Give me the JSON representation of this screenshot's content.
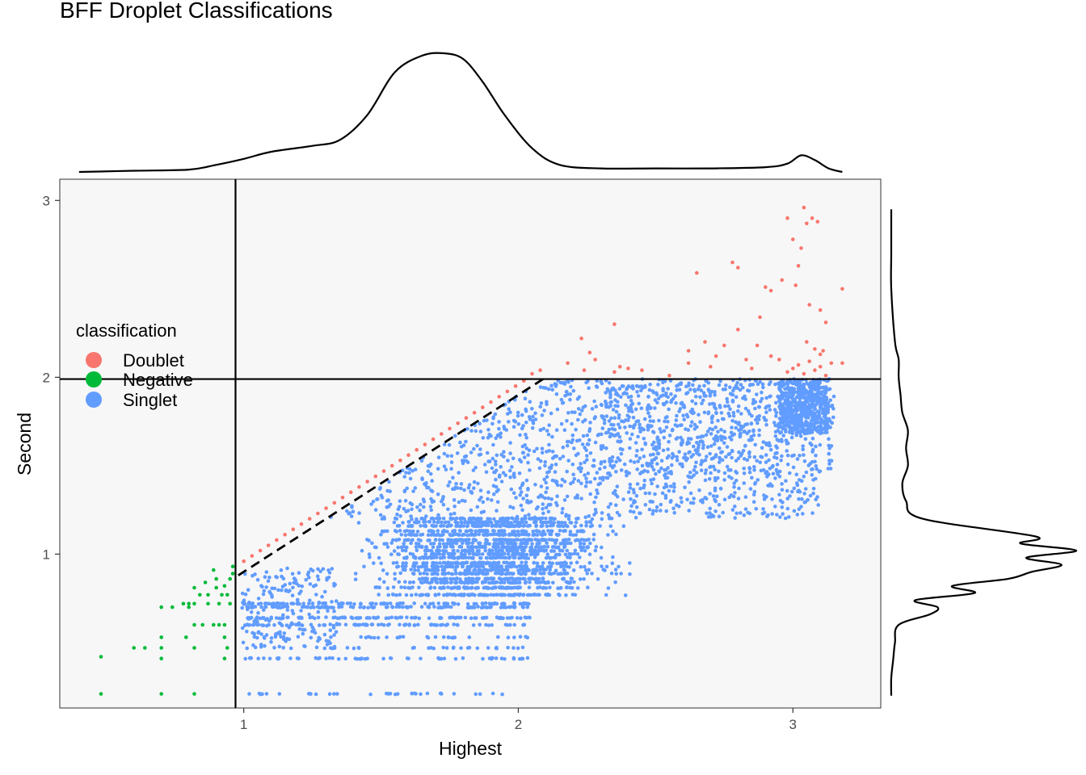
{
  "chart_data": {
    "type": "scatter",
    "title": "BFF Droplet Classifications",
    "xlabel": "Highest",
    "ylabel": "Second",
    "xlim": [
      0.33,
      3.32
    ],
    "ylim": [
      0.13,
      3.12
    ],
    "x_ticks": [
      1,
      2,
      3
    ],
    "y_ticks": [
      1,
      2,
      3
    ],
    "x_tick_labels": [
      "1",
      "2",
      "3"
    ],
    "y_tick_labels": [
      "1",
      "2",
      "3"
    ],
    "grid": false,
    "legend": {
      "title": "classification",
      "position": "left-inside",
      "entries": [
        {
          "label": "Doublet",
          "color": "#F8766D"
        },
        {
          "label": "Negative",
          "color": "#00BA38"
        },
        {
          "label": "Singlet",
          "color": "#619CFF"
        }
      ]
    },
    "reference_lines": {
      "vertical_x": 0.97,
      "horizontal_y": 1.99,
      "diagonal_dashed": {
        "from": [
          0.98,
          0.88
        ],
        "to": [
          2.1,
          2.0
        ]
      }
    },
    "marginal_density_x": {
      "x": [
        0.4,
        0.6,
        0.8,
        0.9,
        1.0,
        1.1,
        1.25,
        1.35,
        1.45,
        1.55,
        1.65,
        1.73,
        1.8,
        1.87,
        1.95,
        2.05,
        2.15,
        2.3,
        2.5,
        2.7,
        2.9,
        2.98,
        3.03,
        3.08,
        3.13,
        3.18
      ],
      "density": [
        0.0,
        0.01,
        0.02,
        0.06,
        0.11,
        0.17,
        0.22,
        0.27,
        0.48,
        0.84,
        0.98,
        1.0,
        0.95,
        0.76,
        0.48,
        0.2,
        0.06,
        0.03,
        0.03,
        0.03,
        0.04,
        0.07,
        0.14,
        0.1,
        0.03,
        0.0
      ]
    },
    "marginal_density_y": {
      "y": [
        0.2,
        0.3,
        0.4,
        0.5,
        0.6,
        0.66,
        0.7,
        0.74,
        0.78,
        0.82,
        0.86,
        0.9,
        0.94,
        0.98,
        1.02,
        1.06,
        1.1,
        1.2,
        1.3,
        1.4,
        1.5,
        1.6,
        1.7,
        1.8,
        1.9,
        2.0,
        2.1,
        2.2,
        2.5,
        2.7,
        2.95
      ],
      "density": [
        0.0,
        0.0,
        0.01,
        0.02,
        0.04,
        0.21,
        0.25,
        0.13,
        0.45,
        0.33,
        0.63,
        0.76,
        0.92,
        0.73,
        1.0,
        0.7,
        0.78,
        0.17,
        0.08,
        0.06,
        0.09,
        0.08,
        0.09,
        0.06,
        0.05,
        0.04,
        0.04,
        0.02,
        0.0,
        0.0,
        0.0
      ]
    },
    "series": [
      {
        "name": "Doublet",
        "color": "#F8766D",
        "points": [
          [
            1.0,
            0.96
          ],
          [
            1.03,
            0.99
          ],
          [
            1.06,
            1.02
          ],
          [
            1.09,
            1.05
          ],
          [
            1.12,
            1.08
          ],
          [
            1.15,
            1.11
          ],
          [
            1.18,
            1.14
          ],
          [
            1.21,
            1.17
          ],
          [
            1.24,
            1.2
          ],
          [
            1.27,
            1.23
          ],
          [
            1.3,
            1.26
          ],
          [
            1.33,
            1.29
          ],
          [
            1.36,
            1.32
          ],
          [
            1.39,
            1.35
          ],
          [
            1.42,
            1.38
          ],
          [
            1.45,
            1.41
          ],
          [
            1.48,
            1.44
          ],
          [
            1.51,
            1.47
          ],
          [
            1.54,
            1.5
          ],
          [
            1.57,
            1.53
          ],
          [
            1.6,
            1.56
          ],
          [
            1.63,
            1.59
          ],
          [
            1.66,
            1.62
          ],
          [
            1.69,
            1.65
          ],
          [
            1.72,
            1.68
          ],
          [
            1.75,
            1.71
          ],
          [
            1.78,
            1.74
          ],
          [
            1.81,
            1.77
          ],
          [
            1.84,
            1.8
          ],
          [
            1.87,
            1.83
          ],
          [
            1.9,
            1.86
          ],
          [
            1.93,
            1.89
          ],
          [
            1.96,
            1.92
          ],
          [
            1.99,
            1.95
          ],
          [
            2.02,
            1.98
          ],
          [
            2.05,
            2.02
          ],
          [
            2.08,
            2.04
          ],
          [
            2.18,
            2.08
          ],
          [
            2.24,
            2.04
          ],
          [
            2.28,
            2.1
          ],
          [
            2.35,
            2.3
          ],
          [
            2.37,
            2.06
          ],
          [
            2.23,
            2.22
          ],
          [
            2.55,
            2.01
          ],
          [
            2.62,
            2.08
          ],
          [
            2.65,
            2.59
          ],
          [
            2.68,
            2.2
          ],
          [
            2.75,
            2.18
          ],
          [
            2.78,
            2.65
          ],
          [
            2.8,
            2.62
          ],
          [
            2.85,
            2.05
          ],
          [
            2.87,
            2.18
          ],
          [
            2.9,
            2.51
          ],
          [
            2.92,
            2.49
          ],
          [
            2.95,
            2.1
          ],
          [
            2.96,
            2.55
          ],
          [
            2.98,
            2.9
          ],
          [
            3.0,
            2.78
          ],
          [
            3.01,
            2.52
          ],
          [
            3.02,
            2.63
          ],
          [
            3.03,
            2.73
          ],
          [
            3.04,
            2.96
          ],
          [
            3.05,
            2.87
          ],
          [
            3.06,
            2.41
          ],
          [
            3.07,
            2.9
          ],
          [
            3.08,
            2.16
          ],
          [
            3.09,
            2.88
          ],
          [
            3.1,
            2.38
          ],
          [
            3.11,
            2.15
          ],
          [
            3.12,
            2.31
          ],
          [
            3.14,
            2.08
          ],
          [
            3.18,
            2.5
          ],
          [
            3.18,
            2.08
          ],
          [
            2.98,
            2.03
          ],
          [
            3.0,
            2.05
          ],
          [
            3.02,
            2.07
          ],
          [
            3.04,
            2.02
          ],
          [
            3.06,
            2.09
          ],
          [
            3.08,
            2.04
          ],
          [
            3.1,
            2.06
          ],
          [
            3.12,
            2.01
          ],
          [
            2.7,
            2.06
          ],
          [
            2.45,
            2.04
          ],
          [
            2.62,
            2.15
          ],
          [
            2.72,
            2.12
          ],
          [
            2.8,
            2.27
          ],
          [
            2.88,
            2.34
          ],
          [
            2.92,
            2.12
          ],
          [
            2.83,
            2.1
          ],
          [
            2.4,
            2.05
          ],
          [
            2.26,
            2.14
          ],
          [
            2.35,
            2.03
          ],
          [
            3.05,
            2.2
          ],
          [
            3.1,
            2.13
          ]
        ]
      },
      {
        "name": "Negative",
        "color": "#00BA38",
        "points": [
          [
            0.48,
            0.21
          ],
          [
            0.48,
            0.42
          ],
          [
            0.6,
            0.47
          ],
          [
            0.64,
            0.47
          ],
          [
            0.7,
            0.21
          ],
          [
            0.7,
            0.41
          ],
          [
            0.7,
            0.47
          ],
          [
            0.7,
            0.53
          ],
          [
            0.7,
            0.7
          ],
          [
            0.74,
            0.7
          ],
          [
            0.79,
            0.53
          ],
          [
            0.8,
            0.7
          ],
          [
            0.8,
            0.72
          ],
          [
            0.82,
            0.21
          ],
          [
            0.82,
            0.47
          ],
          [
            0.82,
            0.6
          ],
          [
            0.82,
            0.72
          ],
          [
            0.82,
            0.81
          ],
          [
            0.85,
            0.6
          ],
          [
            0.87,
            0.72
          ],
          [
            0.89,
            0.6
          ],
          [
            0.9,
            0.81
          ],
          [
            0.9,
            0.86
          ],
          [
            0.91,
            0.72
          ],
          [
            0.92,
            0.77
          ],
          [
            0.93,
            0.41
          ],
          [
            0.93,
            0.53
          ],
          [
            0.93,
            0.6
          ],
          [
            0.93,
            0.82
          ],
          [
            0.94,
            0.77
          ],
          [
            0.95,
            0.72
          ],
          [
            0.95,
            0.86
          ],
          [
            0.96,
            0.89
          ],
          [
            0.96,
            0.93
          ],
          [
            0.94,
            0.47
          ],
          [
            0.91,
            0.6
          ],
          [
            0.89,
            0.91
          ],
          [
            0.87,
            0.77
          ],
          [
            0.86,
            0.84
          ],
          [
            0.84,
            0.77
          ],
          [
            0.78,
            0.72
          ]
        ]
      },
      {
        "name": "Singlet",
        "color": "#619CFF",
        "generated": true,
        "region": {
          "x_min": 0.98,
          "x_max": 3.15,
          "y_min": 0.2,
          "y_max": 1.99,
          "upper_bound": "y <= x - 0.10"
        }
      }
    ]
  }
}
